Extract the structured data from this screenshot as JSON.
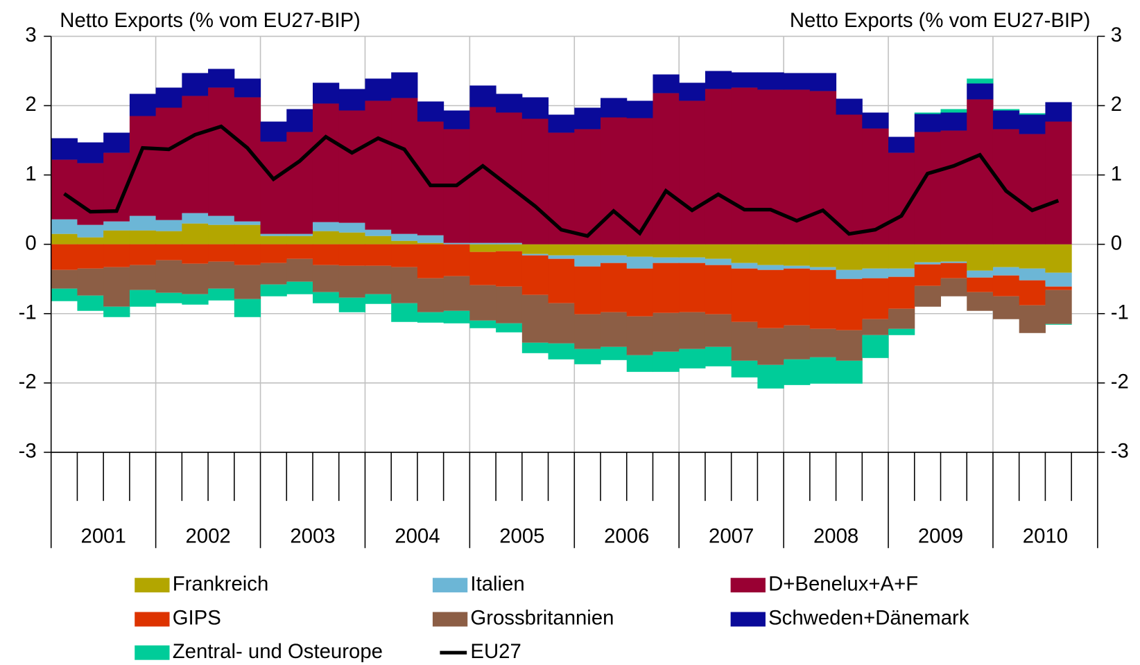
{
  "chart_data": {
    "type": "bar",
    "stacked": true,
    "y_label": "Netto Exports (% vom EU27-BIP)",
    "y2_label": "Netto Exports (% vom EU27-BIP)",
    "categories": [
      null,
      null,
      null,
      null,
      null,
      null,
      null,
      null,
      null,
      null,
      null,
      null,
      null,
      null,
      null,
      null,
      null,
      null,
      null,
      null,
      null,
      null,
      null,
      null,
      null,
      null,
      null,
      null,
      null,
      null,
      null,
      null,
      null,
      null,
      null,
      null,
      null,
      null,
      null,
      null
    ],
    "x_groups": [
      "2001",
      "2002",
      "2003",
      "2004",
      "2005",
      "2006",
      "2007",
      "2008",
      "2009",
      "2010"
    ],
    "ylim": [
      -3,
      3
    ],
    "yticks": [
      -3,
      -2,
      -1,
      0,
      1,
      2,
      3
    ],
    "y2lim": [
      -3,
      3
    ],
    "y2ticks": [
      -3,
      -2,
      -1,
      0,
      1,
      2,
      3
    ],
    "grid": true,
    "series": [
      {
        "name": "Frankreich",
        "color": "#b3a600",
        "values": [
          0.15,
          0.1,
          0.2,
          0.2,
          0.19,
          0.3,
          0.28,
          0.28,
          0.12,
          0.12,
          0.19,
          0.17,
          0.12,
          0.05,
          0.02,
          0.0,
          -0.11,
          -0.1,
          -0.14,
          -0.16,
          -0.16,
          -0.16,
          -0.18,
          -0.19,
          -0.19,
          -0.21,
          -0.27,
          -0.3,
          -0.31,
          -0.33,
          -0.37,
          -0.35,
          -0.35,
          -0.26,
          -0.25,
          -0.38,
          -0.33,
          -0.35,
          -0.41,
          null
        ]
      },
      {
        "name": "Italien",
        "color": "#6cb6d6",
        "values": [
          0.21,
          0.18,
          0.13,
          0.21,
          0.16,
          0.15,
          0.13,
          0.05,
          0.03,
          0.03,
          0.13,
          0.14,
          0.09,
          0.1,
          0.11,
          0.02,
          0.02,
          0.02,
          -0.02,
          -0.05,
          -0.16,
          -0.11,
          -0.17,
          -0.08,
          -0.08,
          -0.09,
          -0.08,
          -0.07,
          -0.04,
          -0.04,
          -0.13,
          -0.14,
          -0.12,
          -0.03,
          -0.02,
          -0.1,
          -0.12,
          -0.17,
          -0.2,
          null
        ]
      },
      {
        "name": "D+Benelux+A+F",
        "color": "#990033",
        "values": [
          0.86,
          0.89,
          0.99,
          1.44,
          1.62,
          1.69,
          1.85,
          1.79,
          1.33,
          1.47,
          1.71,
          1.62,
          1.86,
          1.96,
          1.64,
          1.64,
          1.96,
          1.88,
          1.81,
          1.61,
          1.66,
          1.83,
          1.82,
          2.18,
          2.07,
          2.24,
          2.26,
          2.23,
          2.23,
          2.21,
          1.87,
          1.67,
          1.32,
          1.62,
          1.64,
          2.09,
          1.66,
          1.59,
          1.77,
          null
        ]
      },
      {
        "name": "GIPS",
        "color": "#dd3300",
        "values": [
          -0.37,
          -0.35,
          -0.33,
          -0.3,
          -0.23,
          -0.28,
          -0.25,
          -0.3,
          -0.27,
          -0.21,
          -0.3,
          -0.31,
          -0.31,
          -0.33,
          -0.49,
          -0.46,
          -0.48,
          -0.51,
          -0.57,
          -0.64,
          -0.69,
          -0.71,
          -0.69,
          -0.72,
          -0.71,
          -0.71,
          -0.77,
          -0.84,
          -0.82,
          -0.85,
          -0.74,
          -0.59,
          -0.46,
          -0.31,
          -0.22,
          -0.21,
          -0.3,
          -0.36,
          -0.05,
          null
        ]
      },
      {
        "name": "Grossbritannien",
        "color": "#8c5e45",
        "values": [
          -0.27,
          -0.39,
          -0.57,
          -0.36,
          -0.47,
          -0.44,
          -0.39,
          -0.49,
          -0.31,
          -0.33,
          -0.39,
          -0.46,
          -0.41,
          -0.52,
          -0.49,
          -0.5,
          -0.51,
          -0.53,
          -0.69,
          -0.58,
          -0.5,
          -0.5,
          -0.56,
          -0.56,
          -0.53,
          -0.47,
          -0.56,
          -0.53,
          -0.49,
          -0.41,
          -0.44,
          -0.23,
          -0.29,
          -0.3,
          -0.26,
          -0.27,
          -0.33,
          -0.4,
          -0.49,
          null
        ]
      },
      {
        "name": "Schweden+Dänemark",
        "color": "#0a0a99",
        "values": [
          0.31,
          0.3,
          0.29,
          0.32,
          0.29,
          0.33,
          0.27,
          0.27,
          0.29,
          0.33,
          0.3,
          0.31,
          0.32,
          0.37,
          0.29,
          0.27,
          0.31,
          0.27,
          0.31,
          0.26,
          0.31,
          0.28,
          0.25,
          0.27,
          0.26,
          0.26,
          0.22,
          0.25,
          0.24,
          0.26,
          0.23,
          0.23,
          0.23,
          0.26,
          0.26,
          0.23,
          0.27,
          0.28,
          0.28,
          null
        ]
      },
      {
        "name": "Zentral- und Osteurope",
        "color": "#00cc99",
        "values": [
          -0.18,
          -0.22,
          -0.15,
          -0.24,
          -0.15,
          -0.15,
          -0.17,
          -0.26,
          -0.17,
          -0.18,
          -0.16,
          -0.21,
          -0.14,
          -0.27,
          -0.15,
          -0.18,
          -0.11,
          -0.13,
          -0.15,
          -0.23,
          -0.22,
          -0.19,
          -0.24,
          -0.29,
          -0.28,
          -0.28,
          -0.24,
          -0.34,
          -0.37,
          -0.38,
          -0.33,
          -0.33,
          -0.09,
          0.02,
          0.05,
          0.07,
          0.02,
          0.02,
          -0.01,
          null
        ]
      },
      {
        "name": "EU27",
        "color": "#000000",
        "type": "line",
        "values": [
          0.73,
          0.47,
          0.48,
          1.39,
          1.37,
          1.58,
          1.7,
          1.39,
          0.94,
          1.2,
          1.55,
          1.32,
          1.53,
          1.37,
          0.85,
          0.85,
          1.13,
          0.84,
          0.55,
          0.21,
          0.12,
          0.48,
          0.16,
          0.77,
          0.49,
          0.72,
          0.5,
          0.5,
          0.34,
          0.49,
          0.15,
          0.21,
          0.41,
          1.02,
          1.13,
          1.29,
          0.77,
          0.49,
          0.63,
          null
        ]
      }
    ]
  }
}
